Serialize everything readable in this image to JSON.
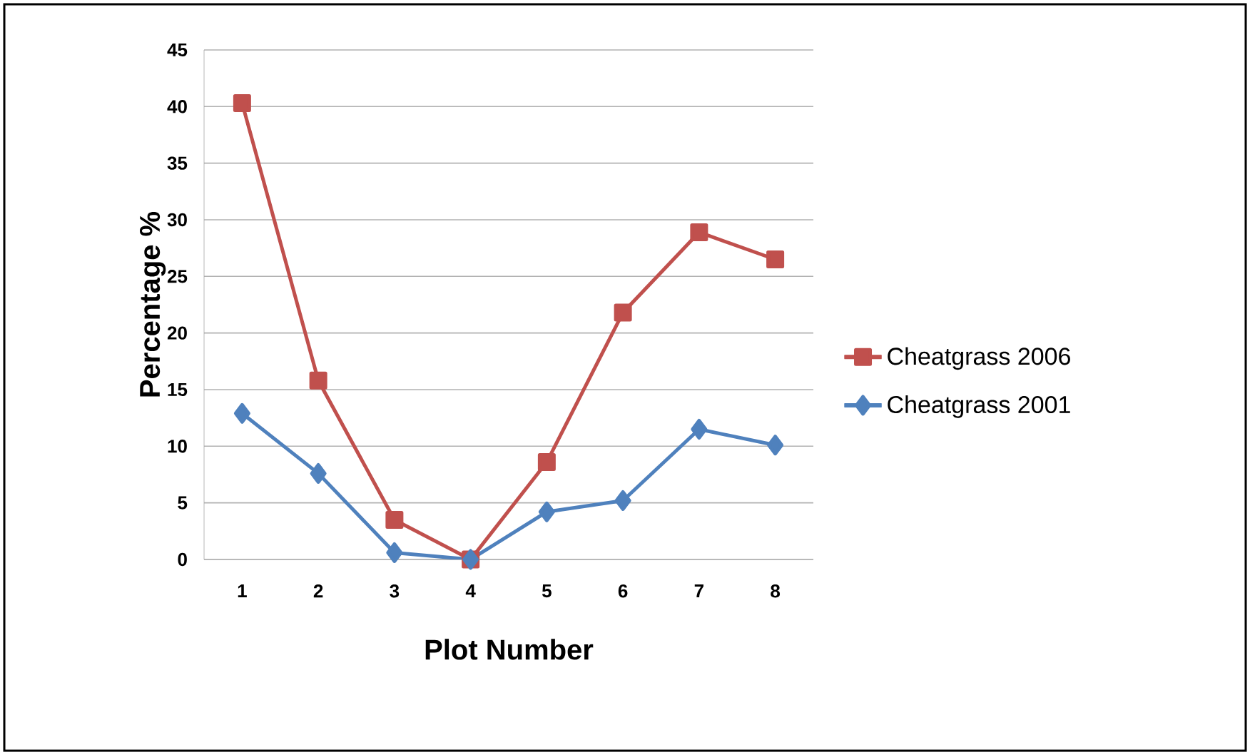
{
  "chart_data": {
    "type": "line",
    "xlabel": "Plot Number",
    "ylabel": "Percentage %",
    "categories": [
      "1",
      "2",
      "3",
      "4",
      "5",
      "6",
      "7",
      "8"
    ],
    "series": [
      {
        "name": "Cheatgrass 2006",
        "color": "#c0504d",
        "marker": "square",
        "values": [
          40.3,
          15.8,
          3.5,
          0,
          8.6,
          21.8,
          28.9,
          26.5
        ]
      },
      {
        "name": "Cheatgrass 2001",
        "color": "#4f81bd",
        "marker": "diamond",
        "values": [
          12.9,
          7.6,
          0.6,
          0,
          4.2,
          5.2,
          11.5,
          10.1
        ]
      }
    ],
    "ylim": [
      0,
      45
    ],
    "yticks": [
      0,
      5,
      10,
      15,
      20,
      25,
      30,
      35,
      40,
      45
    ],
    "grid": "y",
    "legend": "right",
    "line_style": "solid"
  }
}
